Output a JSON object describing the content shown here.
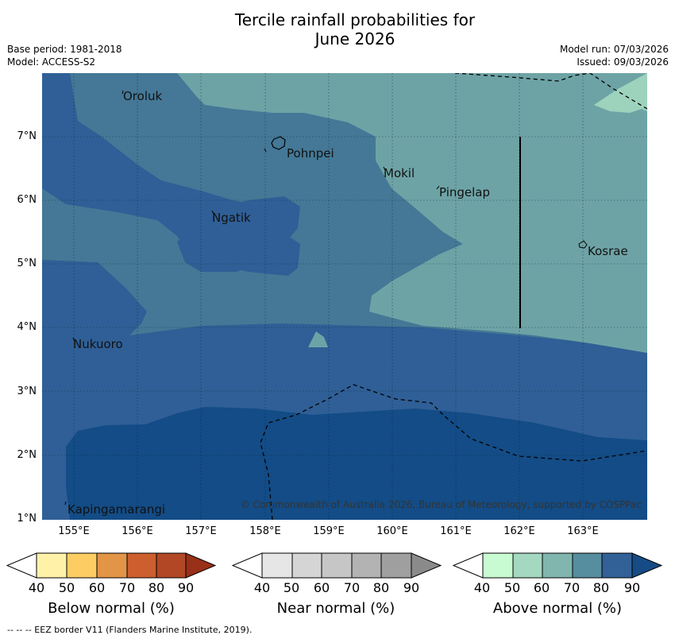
{
  "title_line1": "Tercile rainfall probabilities for",
  "title_line2": "June 2026",
  "meta": {
    "base_period": "Base period: 1981-2018",
    "model": "Model: ACCESS-S2",
    "model_run": "Model run: 07/03/2026",
    "issued": "Issued: 09/03/2026"
  },
  "axes": {
    "y_labels": [
      "7°N",
      "6°N",
      "5°N",
      "4°N",
      "3°N",
      "2°N",
      "1°N"
    ],
    "x_labels": [
      "155°E",
      "156°E",
      "157°E",
      "158°E",
      "159°E",
      "160°E",
      "161°E",
      "162°E",
      "163°E"
    ]
  },
  "places": [
    "Oroluk",
    "Pohnpei",
    "Mokil",
    "Pingelap",
    "Ngatik",
    "Kosrae",
    "Nukuoro",
    "Kapingamarangi"
  ],
  "copyright": "© Commonwealth of Australia 2026, Bureau of Meteorology, supported by COSPPac",
  "colorbars": {
    "ticks": [
      "40",
      "50",
      "60",
      "70",
      "80",
      "90"
    ],
    "below_label": "Below normal (%)",
    "near_label": "Near normal (%)",
    "above_label": "Above normal (%)",
    "below_colors": [
      "#fff2a8",
      "#fdcd64",
      "#e29447",
      "#cd5f2e",
      "#b24725",
      "#993018"
    ],
    "near_colors": [
      "#e6e6e6",
      "#d5d5d5",
      "#c6c6c6",
      "#b3b3b3",
      "#9f9f9f",
      "#8a8a8a"
    ],
    "above_colors": [
      "#c8fbd2",
      "#a4d8c0",
      "#80b6ae",
      "#578e9f",
      "#316196",
      "#164b86"
    ]
  },
  "map_colors": {
    "above_50": "#9dd3bc",
    "above_60": "#6ea3a6",
    "above_70": "#447896",
    "above_80": "#2f5f96",
    "above_90": "#134c86"
  },
  "footnote": "-- -- -- EEZ border V11 (Flanders Marine Institute, 2019)."
}
